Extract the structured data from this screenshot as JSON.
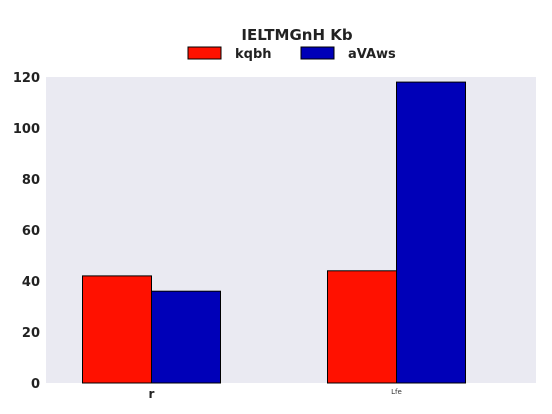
{
  "chart_data": {
    "type": "bar",
    "title": "IELTMGnH Kb",
    "categories": [
      "r",
      "Lfe"
    ],
    "series": [
      {
        "name": "kqbh",
        "values": [
          42,
          44
        ]
      },
      {
        "name": "aVAws",
        "values": [
          36,
          118
        ]
      }
    ],
    "ylim": [
      0,
      120
    ],
    "yticks": [
      0,
      20,
      40,
      60,
      80,
      100,
      120
    ],
    "grid": false,
    "legend_position": "top-center",
    "colors": {
      "series": [
        "#ff1100",
        "#0000b8"
      ],
      "plot_background": "#eaeaf2"
    }
  }
}
